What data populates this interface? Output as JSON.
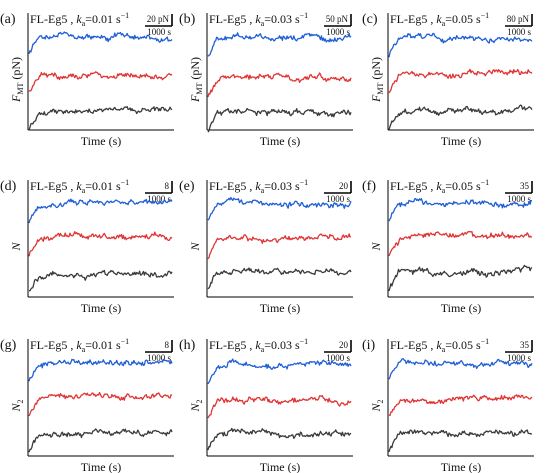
{
  "figure": {
    "colors": {
      "top": "#1f5fd6",
      "middle": "#e03434",
      "bottom": "#3a3a3a",
      "axis": "#000000"
    }
  },
  "chart_data": [
    {
      "type": "line",
      "panel": "(a)",
      "title_prefix": "FL-Eg5 ,",
      "title_sym": "k",
      "title_sub": "a",
      "title_value": "=0.01 s",
      "title_sup": "−1",
      "scale_value": "20 pN",
      "scale_time": "1000 s",
      "ylabel": "F",
      "ylabel_sub": "MT",
      "ylabel_unit": " (pN)",
      "xlabel": "Time (s)",
      "series_levels": [
        0.8,
        0.47,
        0.17
      ],
      "series_colors": [
        "#1f5fd6",
        "#e03434",
        "#3a3a3a"
      ],
      "seed": 11
    },
    {
      "type": "line",
      "panel": "(b)",
      "title_prefix": "FL-Eg5 ,",
      "title_sym": "k",
      "title_sub": "a",
      "title_value": "=0.03 s",
      "title_sup": "−1",
      "scale_value": "50 pN",
      "scale_time": "1000 s",
      "ylabel": "F",
      "ylabel_sub": "MT",
      "ylabel_unit": " (pN)",
      "xlabel": "Time (s)",
      "series_levels": [
        0.78,
        0.45,
        0.16
      ],
      "series_colors": [
        "#1f5fd6",
        "#e03434",
        "#3a3a3a"
      ],
      "seed": 23
    },
    {
      "type": "line",
      "panel": "(c)",
      "title_prefix": "FL-Eg5 ,",
      "title_sym": "k",
      "title_sub": "a",
      "title_value": "=0.05 s",
      "title_sup": "−1",
      "scale_value": "80 pN",
      "scale_time": "1000 s",
      "ylabel": "F",
      "ylabel_sub": "MT",
      "ylabel_unit": " (pN)",
      "xlabel": "Time (s)",
      "series_levels": [
        0.78,
        0.48,
        0.17
      ],
      "series_colors": [
        "#1f5fd6",
        "#e03434",
        "#3a3a3a"
      ],
      "seed": 37
    },
    {
      "type": "line",
      "panel": "(d)",
      "title_prefix": "FL-Eg5 ,",
      "title_sym": "k",
      "title_sub": "a",
      "title_value": "=0.01 s",
      "title_sup": "−1",
      "scale_value": "8",
      "scale_time": "1000 s",
      "ylabel": "N",
      "ylabel_sub": "",
      "ylabel_unit": "",
      "xlabel": "Time (s)",
      "series_levels": [
        0.8,
        0.52,
        0.2
      ],
      "series_colors": [
        "#1f5fd6",
        "#e03434",
        "#3a3a3a"
      ],
      "seed": 41
    },
    {
      "type": "line",
      "panel": "(e)",
      "title_prefix": "FL-Eg5 ,",
      "title_sym": "k",
      "title_sub": "a",
      "title_value": "=0.03 s",
      "title_sup": "−1",
      "scale_value": "20",
      "scale_time": "1000 s",
      "ylabel": "N",
      "ylabel_sub": "",
      "ylabel_unit": "",
      "xlabel": "Time (s)",
      "series_levels": [
        0.8,
        0.5,
        0.22
      ],
      "series_colors": [
        "#1f5fd6",
        "#e03434",
        "#3a3a3a"
      ],
      "seed": 53
    },
    {
      "type": "line",
      "panel": "(f)",
      "title_prefix": "FL-Eg5 ,",
      "title_sym": "k",
      "title_sub": "a",
      "title_value": "=0.05 s",
      "title_sup": "−1",
      "scale_value": "35",
      "scale_time": "1000 s",
      "ylabel": "N",
      "ylabel_sub": "",
      "ylabel_unit": "",
      "xlabel": "Time (s)",
      "series_levels": [
        0.8,
        0.52,
        0.22
      ],
      "series_colors": [
        "#1f5fd6",
        "#e03434",
        "#3a3a3a"
      ],
      "seed": 67
    },
    {
      "type": "line",
      "panel": "(g)",
      "title_prefix": "FL-Eg5 ,",
      "title_sym": "k",
      "title_sub": "a",
      "title_value": "=0.01 s",
      "title_sup": "−1",
      "scale_value": "8",
      "scale_time": "1000 s",
      "ylabel": "N",
      "ylabel_sub": "2",
      "ylabel_unit": "",
      "xlabel": "Time (s)",
      "series_levels": [
        0.8,
        0.52,
        0.2
      ],
      "series_colors": [
        "#1f5fd6",
        "#e03434",
        "#3a3a3a"
      ],
      "seed": 71
    },
    {
      "type": "line",
      "panel": "(h)",
      "title_prefix": "FL-Eg5 ,",
      "title_sym": "k",
      "title_sub": "a",
      "title_value": "=0.03 s",
      "title_sup": "−1",
      "scale_value": "20",
      "scale_time": "1000 s",
      "ylabel": "N",
      "ylabel_sub": "2",
      "ylabel_unit": "",
      "xlabel": "Time (s)",
      "series_levels": [
        0.78,
        0.48,
        0.2
      ],
      "series_colors": [
        "#1f5fd6",
        "#e03434",
        "#3a3a3a"
      ],
      "seed": 83
    },
    {
      "type": "line",
      "panel": "(i)",
      "title_prefix": "FL-Eg5 ,",
      "title_sym": "k",
      "title_sub": "a",
      "title_value": "=0.05 s",
      "title_sup": "−1",
      "scale_value": "35",
      "scale_time": "1000 s",
      "ylabel": "N",
      "ylabel_sub": "2",
      "ylabel_unit": "",
      "xlabel": "Time (s)",
      "series_levels": [
        0.8,
        0.5,
        0.2
      ],
      "series_colors": [
        "#1f5fd6",
        "#e03434",
        "#3a3a3a"
      ],
      "seed": 97
    }
  ]
}
